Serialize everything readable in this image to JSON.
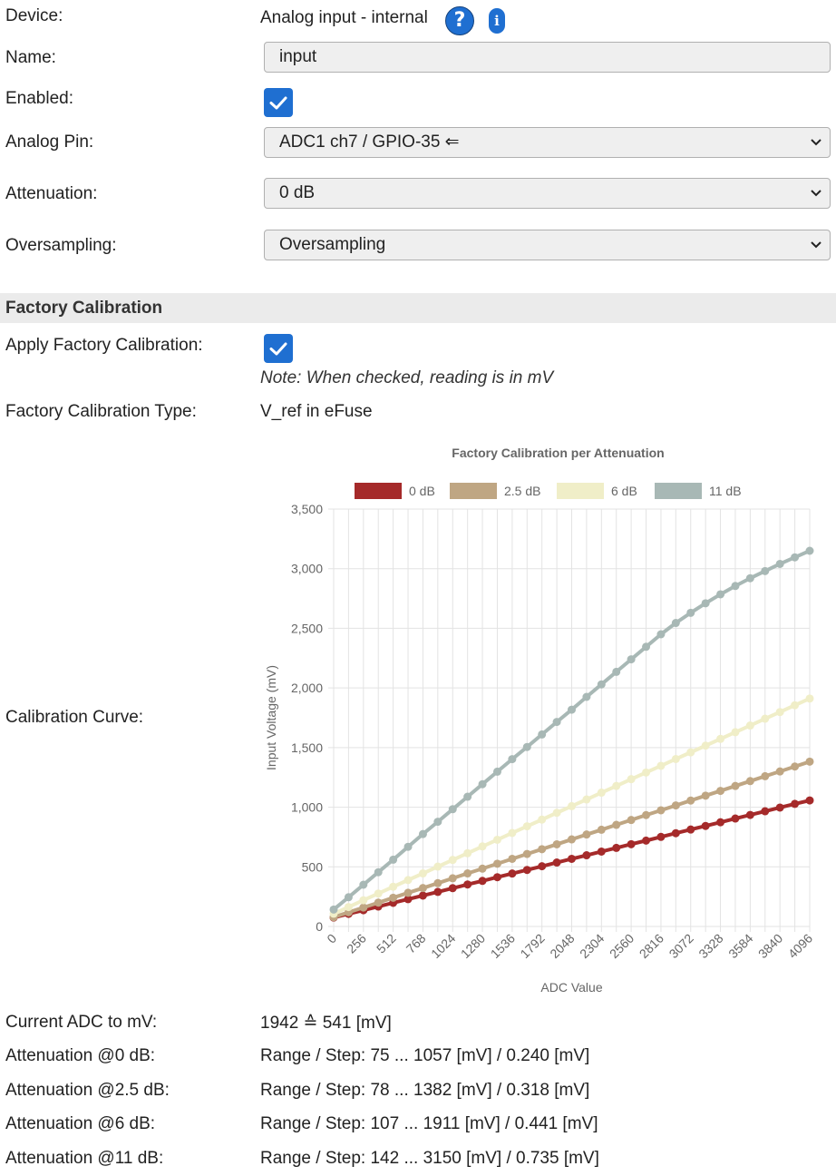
{
  "device": {
    "label": "Device:",
    "value": "Analog input - internal",
    "help_icon": "question-circle-icon",
    "info_icon": "info-icon"
  },
  "name": {
    "label": "Name:",
    "value": "input"
  },
  "enabled": {
    "label": "Enabled:",
    "checked": true
  },
  "analog_pin": {
    "label": "Analog Pin:",
    "value": "ADC1 ch7 / GPIO-35 ⇐"
  },
  "attenuation": {
    "label": "Attenuation:",
    "value": "0 dB"
  },
  "oversampling": {
    "label": "Oversampling:",
    "value": "Oversampling"
  },
  "section": {
    "title": "Factory Calibration"
  },
  "apply_calibration": {
    "label": "Apply Factory Calibration:",
    "checked": true,
    "note": "Note: When checked, reading is in mV"
  },
  "calibration_type": {
    "label": "Factory Calibration Type:",
    "value": "V_ref in eFuse"
  },
  "calibration_curve": {
    "label": "Calibration Curve:"
  },
  "chart_data": {
    "type": "line",
    "title": "Factory Calibration per Attenuation",
    "xlabel": "ADC Value",
    "ylabel": "Input Voltage (mV)",
    "x": [
      0,
      128,
      256,
      384,
      512,
      640,
      768,
      896,
      1024,
      1152,
      1280,
      1408,
      1536,
      1664,
      1792,
      1920,
      2048,
      2176,
      2304,
      2432,
      2560,
      2688,
      2816,
      2944,
      3072,
      3200,
      3328,
      3456,
      3584,
      3712,
      3840,
      3968,
      4096
    ],
    "x_tick_labels": [
      "0",
      "256",
      "512",
      "768",
      "1024",
      "1280",
      "1536",
      "1792",
      "2048",
      "2304",
      "2560",
      "2816",
      "3072",
      "3328",
      "3584",
      "3840",
      "4096"
    ],
    "y_tick_labels": [
      "0",
      "500",
      "1,000",
      "1,500",
      "2,000",
      "2,500",
      "3,000",
      "3,500"
    ],
    "ylim": [
      0,
      3500
    ],
    "xlim": [
      0,
      4096
    ],
    "grid": true,
    "legend": "top",
    "series": [
      {
        "name": "0 dB",
        "color": "#a52a2a",
        "values": [
          75,
          106,
          136,
          167,
          198,
          229,
          259,
          290,
          321,
          352,
          382,
          413,
          444,
          474,
          505,
          536,
          567,
          597,
          628,
          659,
          690,
          720,
          751,
          782,
          813,
          843,
          874,
          905,
          935,
          966,
          997,
          1028,
          1057
        ]
      },
      {
        "name": "2.5 dB",
        "color": "#bfa683",
        "values": [
          78,
          119,
          159,
          200,
          241,
          282,
          322,
          363,
          404,
          445,
          485,
          526,
          567,
          608,
          648,
          689,
          730,
          771,
          811,
          852,
          893,
          934,
          974,
          1015,
          1056,
          1097,
          1137,
          1178,
          1219,
          1260,
          1300,
          1341,
          1382
        ]
      },
      {
        "name": "6 dB",
        "color": "#f0eec8",
        "values": [
          107,
          163,
          220,
          276,
          333,
          389,
          445,
          502,
          558,
          614,
          671,
          727,
          784,
          840,
          896,
          953,
          1009,
          1065,
          1122,
          1178,
          1235,
          1291,
          1347,
          1404,
          1460,
          1516,
          1573,
          1629,
          1685,
          1742,
          1798,
          1855,
          1911
        ]
      },
      {
        "name": "11 dB",
        "color": "#a8b8b5",
        "values": [
          142,
          245,
          350,
          455,
          560,
          668,
          775,
          878,
          983,
          1088,
          1193,
          1298,
          1403,
          1505,
          1610,
          1715,
          1818,
          1925,
          2030,
          2135,
          2240,
          2345,
          2450,
          2545,
          2630,
          2710,
          2785,
          2855,
          2920,
          2980,
          3040,
          3095,
          3150
        ]
      }
    ]
  },
  "current_adc": {
    "label": "Current ADC to mV:",
    "value": "1942 ≙ 541 [mV]"
  },
  "att_rows": [
    {
      "label": "Attenuation @0 dB:",
      "value": "Range / Step: 75 ... 1057 [mV] / 0.240 [mV]"
    },
    {
      "label": "Attenuation @2.5 dB:",
      "value": "Range / Step: 78 ... 1382 [mV] / 0.318 [mV]"
    },
    {
      "label": "Attenuation @6 dB:",
      "value": "Range / Step: 107 ... 1911 [mV] / 0.441 [mV]"
    },
    {
      "label": "Attenuation @11 dB:",
      "value": "Range / Step: 142 ... 3150 [mV] / 0.735 [mV]"
    }
  ],
  "chevron_icon": "chevron-down-icon",
  "check_icon": "checkmark-icon"
}
